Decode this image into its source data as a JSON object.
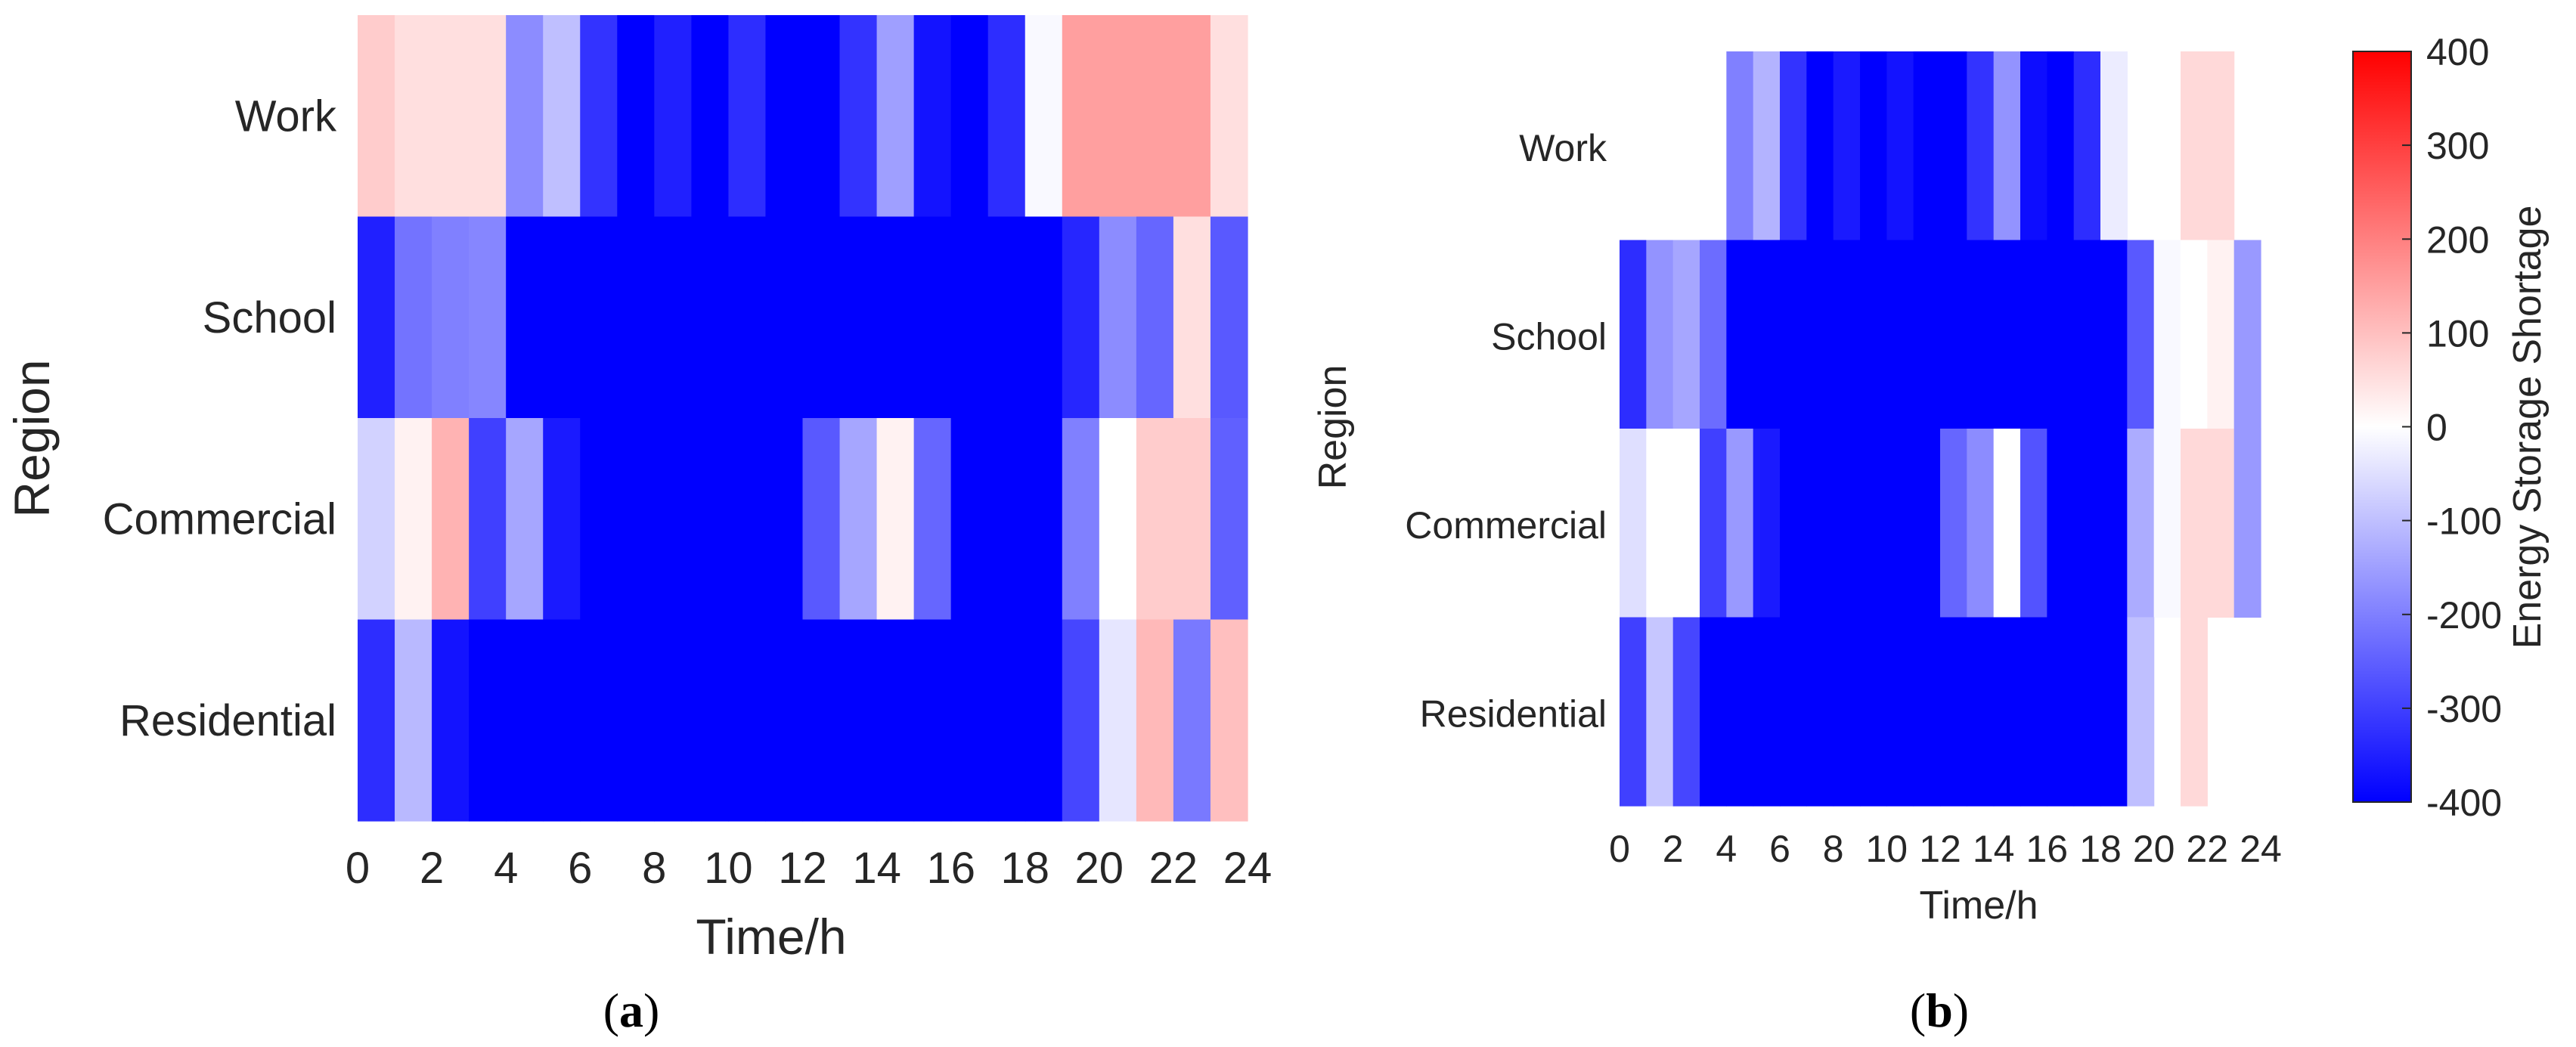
{
  "chart_data": [
    {
      "type": "heatmap",
      "panel_label": "(a)",
      "xlabel": "Time/h",
      "ylabel": "Region",
      "x_ticks": [
        "0",
        "2",
        "4",
        "6",
        "8",
        "10",
        "12",
        "14",
        "16",
        "18",
        "20",
        "22",
        "24"
      ],
      "rows": [
        "Work",
        "School",
        "Commercial",
        "Residential"
      ],
      "hours": [
        0,
        1,
        2,
        3,
        4,
        5,
        6,
        7,
        8,
        9,
        10,
        11,
        12,
        13,
        14,
        15,
        16,
        17,
        18,
        19,
        20,
        21,
        22,
        23
      ],
      "values": [
        [
          80,
          50,
          50,
          50,
          -180,
          -100,
          -320,
          -400,
          -350,
          -400,
          -330,
          -400,
          -400,
          -320,
          -150,
          -370,
          -400,
          -330,
          -10,
          150,
          150,
          150,
          150,
          50
        ],
        [
          -350,
          -220,
          -200,
          -190,
          -400,
          -400,
          -400,
          -400,
          -400,
          -400,
          -400,
          -400,
          -400,
          -400,
          -400,
          -400,
          -400,
          -400,
          -400,
          -340,
          -180,
          -240,
          50,
          -260
        ],
        [
          -70,
          20,
          120,
          -300,
          -140,
          -360,
          -400,
          -400,
          -400,
          -400,
          -400,
          -400,
          -260,
          -140,
          20,
          -240,
          -400,
          -400,
          -400,
          -200,
          0,
          80,
          80,
          -250
        ],
        [
          -330,
          -110,
          -370,
          -400,
          -400,
          -400,
          -400,
          -400,
          -400,
          -400,
          -400,
          -400,
          -400,
          -400,
          -400,
          -400,
          -400,
          -400,
          -400,
          -290,
          -40,
          110,
          -210,
          100
        ]
      ],
      "clim": [
        -400,
        400
      ]
    },
    {
      "type": "heatmap",
      "panel_label": "(b)",
      "xlabel": "Time/h",
      "ylabel": "Region",
      "x_ticks": [
        "0",
        "2",
        "4",
        "6",
        "8",
        "10",
        "12",
        "14",
        "16",
        "18",
        "20",
        "22",
        "24"
      ],
      "rows": [
        "Work",
        "School",
        "Commercial",
        "Residential"
      ],
      "hours": [
        0,
        1,
        2,
        3,
        4,
        5,
        6,
        7,
        8,
        9,
        10,
        11,
        12,
        13,
        14,
        15,
        16,
        17,
        18,
        19,
        20,
        21,
        22,
        23
      ],
      "values": [
        [
          null,
          null,
          null,
          null,
          -200,
          -120,
          -320,
          -400,
          -360,
          -400,
          -370,
          -400,
          -400,
          -320,
          -170,
          -380,
          -400,
          -330,
          -30,
          null,
          null,
          60,
          60,
          null
        ],
        [
          -330,
          -170,
          -140,
          -230,
          -400,
          -400,
          -400,
          -400,
          -400,
          -400,
          -400,
          -400,
          -400,
          -400,
          -400,
          -400,
          -400,
          -400,
          -400,
          -260,
          -10,
          0,
          20,
          -160
        ],
        [
          -50,
          0,
          0,
          -300,
          -160,
          -360,
          -400,
          -400,
          -400,
          -400,
          -400,
          -400,
          -240,
          -180,
          0,
          -270,
          -400,
          -400,
          -400,
          -130,
          -10,
          60,
          60,
          -160
        ],
        [
          -300,
          -90,
          -290,
          -400,
          -400,
          -400,
          -400,
          -400,
          -400,
          -400,
          -400,
          -400,
          -400,
          -400,
          -400,
          -400,
          -400,
          -400,
          -400,
          -100,
          null,
          60,
          null,
          null
        ]
      ],
      "clim": [
        -400,
        400
      ],
      "colorbar": {
        "label": "Energy Storage Shortage",
        "ticks": [
          "400",
          "300",
          "200",
          "100",
          "0",
          "-100",
          "-200",
          "-300",
          "-400"
        ]
      }
    }
  ],
  "colors": {
    "low": "#0000ff",
    "mid": "#ffffff",
    "high": "#ff0000",
    "text": "#262626"
  }
}
